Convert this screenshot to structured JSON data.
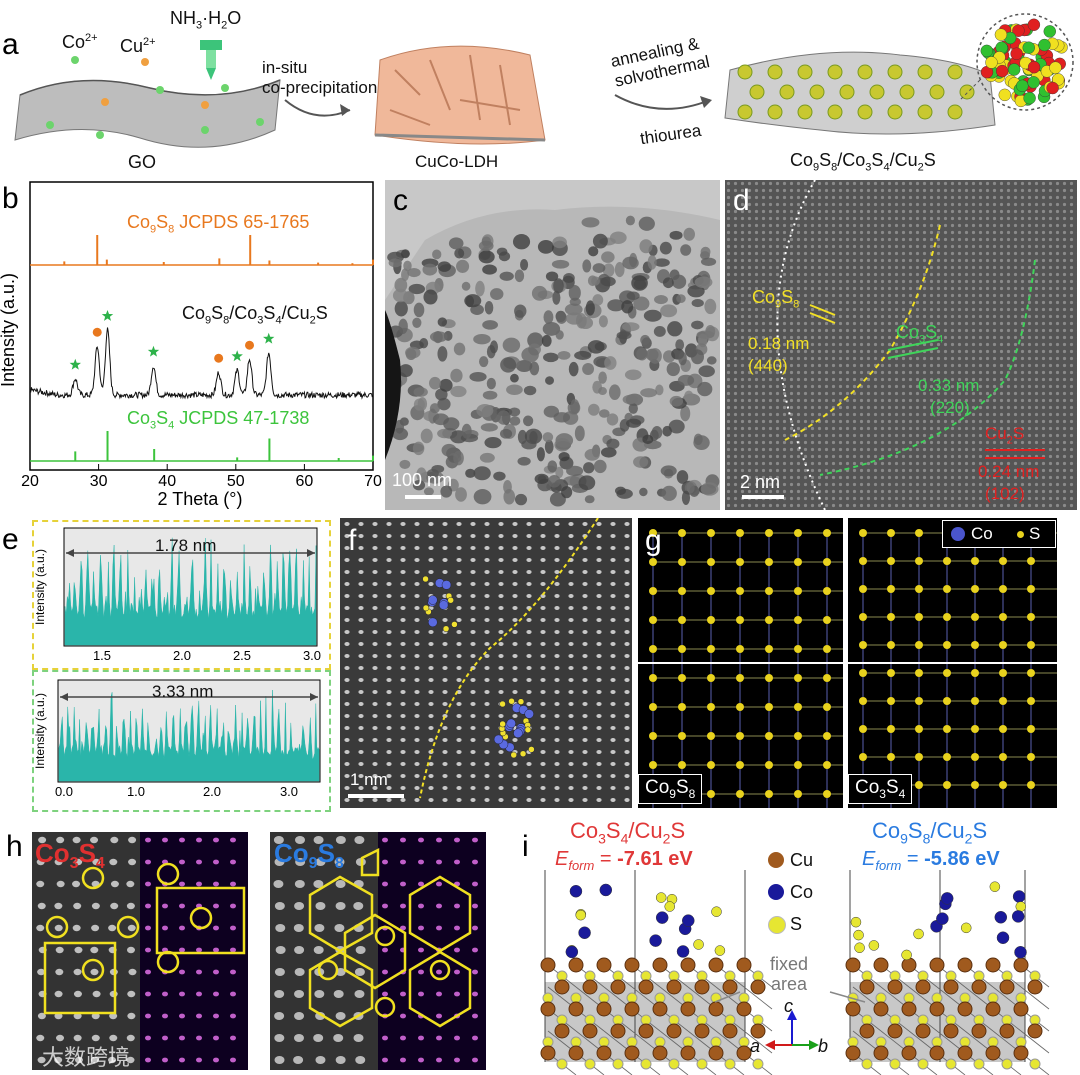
{
  "panel_a": {
    "label": "a",
    "ions": [
      "Co",
      "2+",
      "Cu",
      "2+"
    ],
    "reagent": [
      "NH",
      "3",
      "·H",
      "2",
      "O"
    ],
    "stage1": "GO",
    "arrow1": [
      "in-situ",
      "co-precipitation"
    ],
    "stage2": "CuCo-LDH",
    "arrow2_top": [
      "annealing &",
      "solvothermal"
    ],
    "arrow2_bottom": "thiourea",
    "stage3": [
      "Co",
      "9",
      "S",
      "8",
      "/Co",
      "3",
      "S",
      "4",
      "/Cu",
      "2",
      "S"
    ]
  },
  "panel_b": {
    "label": "b",
    "ref_top": [
      "Co",
      "9",
      "S",
      "8",
      " JCPDS 65-1765"
    ],
    "sample": [
      "Co",
      "9",
      "S",
      "8",
      "/Co",
      "3",
      "S",
      "4",
      "/Cu",
      "2",
      "S"
    ],
    "ref_bottom": [
      "Co",
      "3",
      "S",
      "4",
      " JCPDS 47-1738"
    ],
    "colors": {
      "co9s8": "#e8781e",
      "sample": "#111111",
      "co3s4": "#3cc43c",
      "star": "#2db24a"
    }
  },
  "chart_data": {
    "type": "line",
    "xlabel": "2 Theta (°)",
    "ylabel": "Intensity (a.u.)",
    "xlim": [
      20,
      70
    ],
    "xticks": [
      20,
      30,
      40,
      50,
      60,
      70
    ],
    "series": [
      {
        "name": "Co9S8 JCPDS 65-1765",
        "type": "sticks",
        "x": [
          25.0,
          29.8,
          31.2,
          39.5,
          47.6,
          52.1,
          54.9,
          62.0,
          67.0,
          70.0
        ],
        "y": [
          0.12,
          1.0,
          0.18,
          0.1,
          0.22,
          1.0,
          0.15,
          0.08,
          0.06,
          0.18
        ]
      },
      {
        "name": "Co9S8/Co3S4/Cu2S",
        "type": "line",
        "peaks_x": [
          26.6,
          29.8,
          31.3,
          38.0,
          47.5,
          50.2,
          52.0,
          54.8
        ],
        "peaks_y": [
          0.25,
          0.75,
          1.0,
          0.45,
          0.35,
          0.38,
          0.55,
          0.65
        ]
      },
      {
        "name": "Co3S4 JCPDS 47-1738",
        "type": "sticks",
        "x": [
          26.6,
          31.3,
          38.1,
          50.2,
          54.9,
          65.0,
          70.0
        ],
        "y": [
          0.32,
          1.0,
          0.4,
          0.12,
          0.75,
          0.1,
          0.18
        ]
      }
    ],
    "markers": {
      "circle_x": [
        29.8,
        47.5,
        52.0
      ],
      "star_x": [
        26.6,
        31.3,
        38.0,
        50.2,
        54.8
      ]
    }
  },
  "panel_c": {
    "label": "c",
    "scale": "100 nm"
  },
  "panel_d": {
    "label": "d",
    "scale": "2 nm",
    "co9s8": [
      "Co",
      "9",
      "S",
      "8"
    ],
    "co9s8_d": "0.18 nm",
    "co9s8_hkl": "(440)",
    "co3s4": [
      "Co",
      "3",
      "S",
      "4"
    ],
    "co3s4_d": "0.33 nm",
    "co3s4_hkl": "(220)",
    "cu2s": [
      "Cu",
      "2",
      "S"
    ],
    "cu2s_d": "0.24 nm",
    "cu2s_hkl": "(102)",
    "colors": {
      "yellow": "#f2e025",
      "green": "#3fd45a",
      "red": "#e02020"
    }
  },
  "panel_e": {
    "label": "e",
    "top": {
      "ylabel": "Intensity (a.u.)",
      "measure": "1.78 nm",
      "xticks": [
        "1.5",
        "2.0",
        "2.5",
        "3.0"
      ]
    },
    "bottom": {
      "ylabel": "Intensity (a.u.)",
      "measure": "3.33 nm",
      "xticks": [
        "0.0",
        "1.0",
        "2.0",
        "3.0"
      ]
    },
    "fill_color": "#2ab5aa"
  },
  "panel_f": {
    "label": "f",
    "scale": "1 nm"
  },
  "panel_g": {
    "label": "g",
    "legend": [
      "Co",
      "S"
    ],
    "left": [
      "Co",
      "9",
      "S",
      "8"
    ],
    "right": [
      "Co",
      "3",
      "S",
      "4"
    ],
    "colors": {
      "co": "#4a55cc",
      "s": "#e8d21e"
    }
  },
  "panel_h": {
    "label": "h",
    "left_title": [
      "Co",
      "3",
      "S",
      "4"
    ],
    "right_title": [
      "Co",
      "9",
      "S",
      "8"
    ],
    "colors": {
      "left_title": "#e03030",
      "right_title": "#2a7be0",
      "outline": "#f0e020"
    },
    "watermark": "大数跨境"
  },
  "panel_i": {
    "label": "i",
    "left_title": [
      "Co",
      "3",
      "S",
      "4",
      "/Cu",
      "2",
      "S"
    ],
    "left_energy": [
      "E",
      "form",
      " = ",
      "-7.61 eV"
    ],
    "right_title": [
      "Co",
      "9",
      "S",
      "8",
      "/Cu",
      "2",
      "S"
    ],
    "right_energy": [
      "E",
      "form",
      " = ",
      "-5.86 eV"
    ],
    "legend": [
      "Cu",
      "Co",
      "S"
    ],
    "fixed": [
      "fixed",
      "area"
    ],
    "axes": [
      "c",
      "a",
      "b"
    ],
    "colors": {
      "left": "#e03838",
      "right": "#2a7be0",
      "cu": "#a05a1e",
      "co": "#1a1a9a",
      "s": "#e6e632"
    }
  }
}
